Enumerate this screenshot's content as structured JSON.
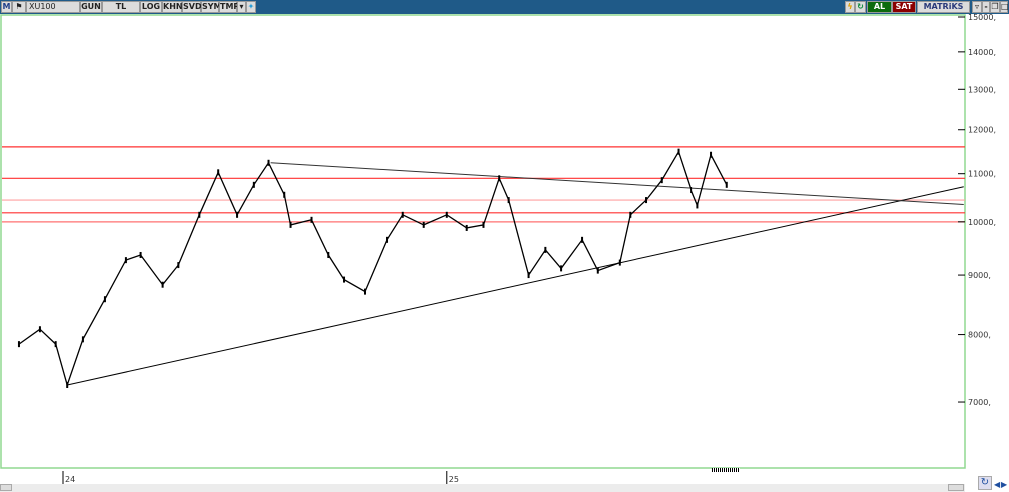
{
  "toolbar": {
    "logo": "M",
    "symbol": "XU100",
    "buttons": [
      "GUN",
      "TL",
      "LOG",
      "KHN",
      "SVD",
      "SYM",
      "TMP"
    ],
    "buy_label": "AL",
    "sell_label": "SAT",
    "brand": "MATRiKS",
    "colors": {
      "buy": "#0d6b0d",
      "sell": "#8b0000",
      "bar": "#1f5a88"
    }
  },
  "chart_data": {
    "type": "line",
    "yscale": "log",
    "ylim": [
      6000,
      15500
    ],
    "yticks": [
      7000,
      8000,
      9000,
      10000,
      11000,
      12000,
      13000,
      14000,
      15000
    ],
    "ytick_labels": [
      "7000,",
      "8000,",
      "9000,",
      "10000,",
      "11000,",
      "12000,",
      "13000,",
      "14000,",
      "15000,"
    ],
    "xticks": [
      {
        "date": "2024-01-01",
        "label": "24"
      },
      {
        "date": "2025-01-01",
        "label": "25"
      }
    ],
    "grid": false,
    "series": [
      {
        "color": "#000000",
        "points": [
          [
            "2023-11-20",
            7850
          ],
          [
            "2023-12-10",
            8085
          ],
          [
            "2023-12-25",
            7850
          ],
          [
            "2024-01-05",
            7240
          ],
          [
            "2024-01-20",
            7925
          ],
          [
            "2024-02-10",
            8580
          ],
          [
            "2024-03-01",
            9270
          ],
          [
            "2024-03-15",
            9365
          ],
          [
            "2024-04-05",
            8830
          ],
          [
            "2024-04-20",
            9180
          ],
          [
            "2024-05-10",
            10140
          ],
          [
            "2024-05-28",
            11030
          ],
          [
            "2024-06-15",
            10140
          ],
          [
            "2024-07-01",
            10760
          ],
          [
            "2024-07-15",
            11240
          ],
          [
            "2024-07-30",
            10550
          ],
          [
            "2024-08-05",
            9940
          ],
          [
            "2024-08-25",
            10040
          ],
          [
            "2024-09-10",
            9365
          ],
          [
            "2024-09-25",
            8920
          ],
          [
            "2024-10-15",
            8710
          ],
          [
            "2024-11-05",
            9650
          ],
          [
            "2024-11-20",
            10140
          ],
          [
            "2024-12-10",
            9940
          ],
          [
            "2025-01-01",
            10140
          ],
          [
            "2025-01-20",
            9880
          ],
          [
            "2025-02-05",
            9940
          ],
          [
            "2025-02-20",
            10900
          ],
          [
            "2025-03-01",
            10440
          ],
          [
            "2025-03-20",
            9000
          ],
          [
            "2025-04-05",
            9460
          ],
          [
            "2025-04-20",
            9120
          ],
          [
            "2025-05-10",
            9650
          ],
          [
            "2025-05-25",
            9080
          ],
          [
            "2025-06-15",
            9225
          ],
          [
            "2025-06-25",
            10140
          ],
          [
            "2025-07-10",
            10440
          ],
          [
            "2025-07-25",
            10860
          ],
          [
            "2025-08-10",
            11490
          ],
          [
            "2025-08-22",
            10650
          ],
          [
            "2025-08-28",
            10330
          ],
          [
            "2025-09-10",
            11420
          ],
          [
            "2025-09-25",
            10760
          ]
        ]
      }
    ],
    "horizontal_levels": [
      {
        "value": 11600,
        "color": "#ff3030"
      },
      {
        "value": 10900,
        "color": "#ff3030"
      },
      {
        "value": 10440,
        "color": "#ffa0a0"
      },
      {
        "value": 10180,
        "color": "#ff3030"
      },
      {
        "value": 10000,
        "color": "#ff7070"
      }
    ],
    "trendlines": [
      {
        "from": [
          "2024-01-05",
          7240
        ],
        "to": [
          "2026-05-09",
          10720
        ],
        "color": "#000000"
      },
      {
        "from": [
          "2024-07-17",
          11240
        ],
        "to": [
          "2026-05-09",
          10350
        ],
        "color": "#333333"
      }
    ]
  }
}
